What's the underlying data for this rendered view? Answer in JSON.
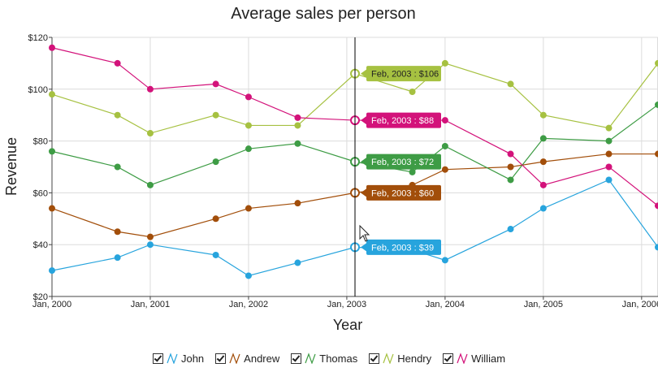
{
  "chart_data": {
    "type": "line",
    "title": "Average sales per person",
    "xlabel": "Year",
    "ylabel": "Revenue",
    "x_ticks": [
      "Jan, 2000",
      "Jan, 2001",
      "Jan, 2002",
      "Jan, 2003",
      "Jan, 2004",
      "Jan, 2005",
      "Jan, 2006"
    ],
    "y_ticks": [
      "$20",
      "$40",
      "$60",
      "$80",
      "$100",
      "$120"
    ],
    "ylim": [
      20,
      120
    ],
    "xlim": [
      "2000-01",
      "2006-03"
    ],
    "grid": true,
    "legend_position": "bottom",
    "x": [
      "2000-01",
      "2000-09",
      "2001-01",
      "2001-09",
      "2002-01",
      "2002-07",
      "2003-02",
      "2003-09",
      "2004-01",
      "2004-09",
      "2005-01",
      "2005-09",
      "2006-03"
    ],
    "series": [
      {
        "name": "John",
        "color": "#27a4dd",
        "values": [
          30,
          35,
          40,
          36,
          28,
          33,
          39,
          38,
          34,
          46,
          54,
          65,
          39
        ]
      },
      {
        "name": "Andrew",
        "color": "#a24e0a",
        "values": [
          54,
          45,
          43,
          50,
          54,
          56,
          60,
          63,
          69,
          70,
          72,
          75,
          75
        ]
      },
      {
        "name": "Thomas",
        "color": "#3e9c45",
        "values": [
          76,
          70,
          63,
          72,
          77,
          79,
          72,
          68,
          78,
          65,
          81,
          80,
          94
        ]
      },
      {
        "name": "Hendry",
        "color": "#a6c141",
        "values": [
          98,
          90,
          83,
          90,
          86,
          86,
          106,
          99,
          110,
          102,
          90,
          85,
          110
        ]
      },
      {
        "name": "William",
        "color": "#d3127a",
        "values": [
          116,
          110,
          100,
          102,
          97,
          89,
          88,
          88,
          88,
          75,
          63,
          70,
          55
        ]
      }
    ],
    "tooltip": {
      "x": "2003-02",
      "labels": [
        "Feb, 2003 : $106",
        "Feb, 2003 : $88",
        "Feb, 2003 : $72",
        "Feb, 2003 : $60",
        "Feb, 2003 : $39"
      ]
    }
  },
  "legend": {
    "items": [
      {
        "label": "John",
        "color": "#27a4dd"
      },
      {
        "label": "Andrew",
        "color": "#a24e0a"
      },
      {
        "label": "Thomas",
        "color": "#3e9c45"
      },
      {
        "label": "Hendry",
        "color": "#a6c141"
      },
      {
        "label": "William",
        "color": "#d3127a"
      }
    ]
  }
}
